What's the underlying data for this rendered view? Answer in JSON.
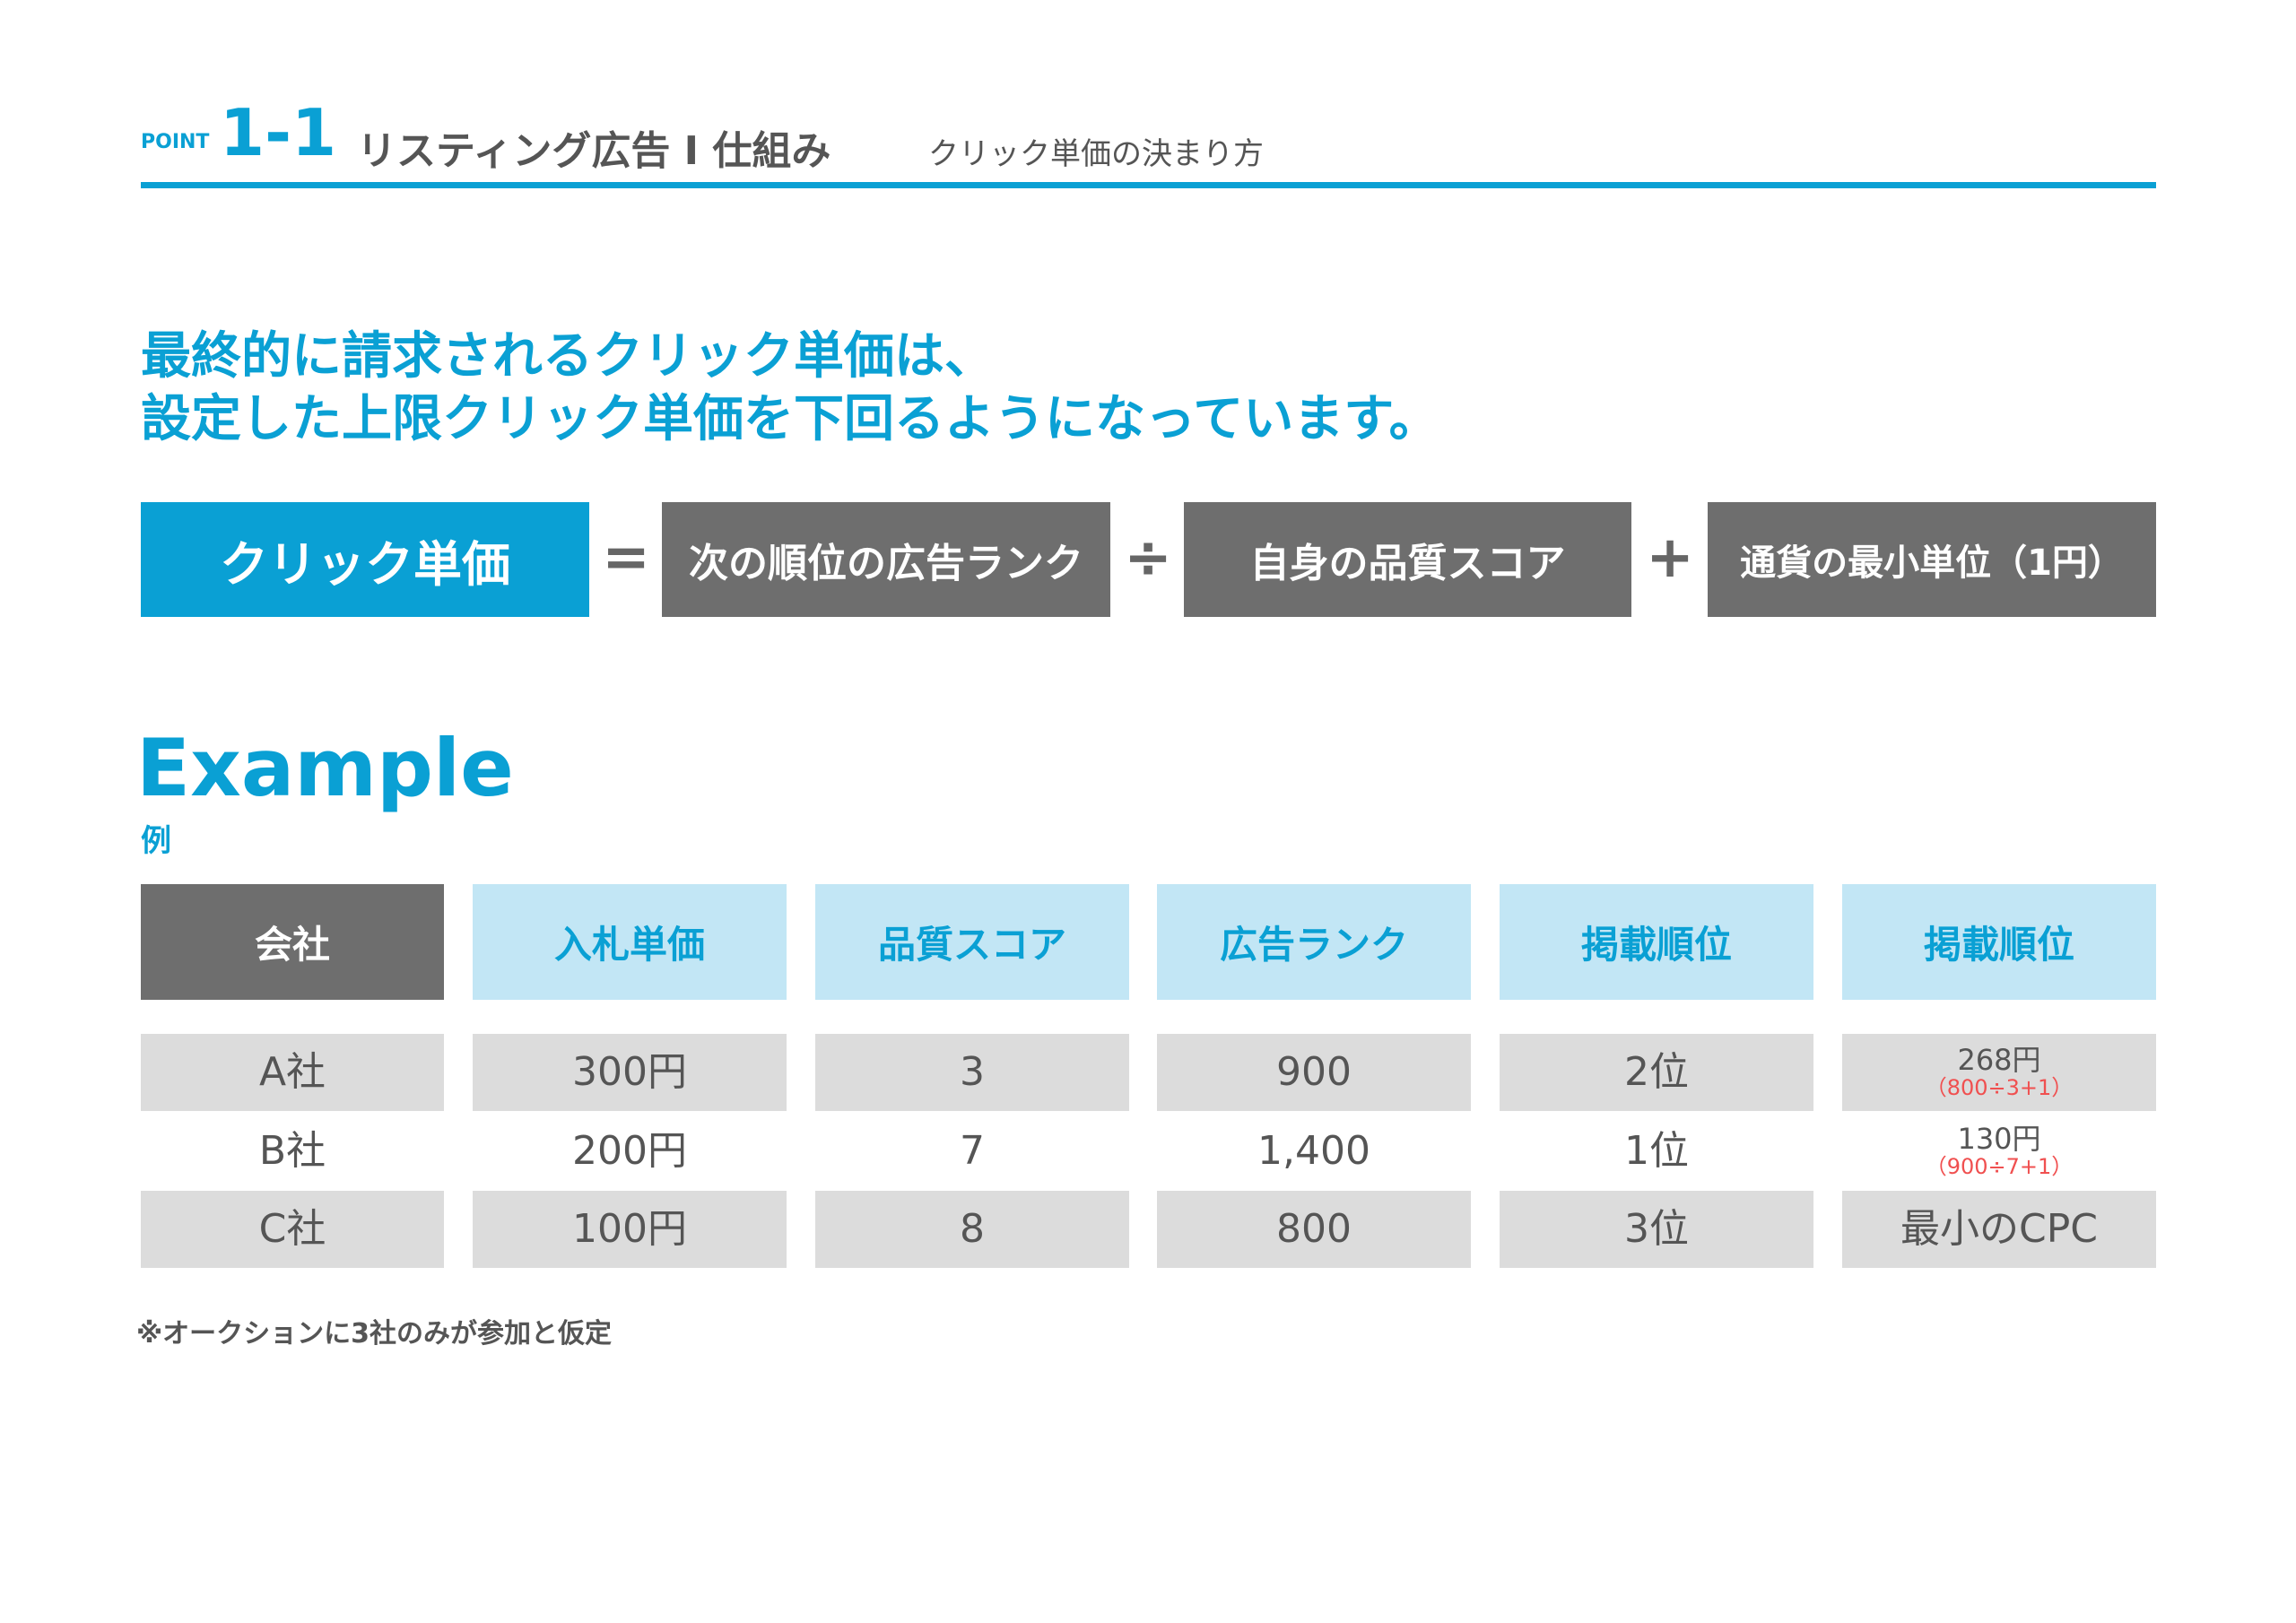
{
  "header": {
    "point": "POINT",
    "number": "1-1",
    "title": "リスティング広告 I 仕組み",
    "subtitle": "クリック単価の決まり方"
  },
  "headline": {
    "line1": "最終的に請求されるクリック単価は、",
    "line2": "設定した上限クリック単価を下回るようになっています。"
  },
  "formula": {
    "result": "クリック単価",
    "op1": "=",
    "term1": "次の順位の広告ランク",
    "op2": "÷",
    "term2": "自身の品質スコア",
    "op3": "+",
    "term3": "通貨の最小単位（1円）"
  },
  "example": {
    "title": "Example",
    "subtitle": "例"
  },
  "table": {
    "headers": [
      "会社",
      "入札単価",
      "品質スコア",
      "広告ランク",
      "掲載順位",
      "掲載順位"
    ],
    "rows": [
      {
        "company": "A社",
        "bid": "300円",
        "quality": "3",
        "rank": "900",
        "position": "2位",
        "cpc": "268円",
        "cpc_note": "（800÷3+1）"
      },
      {
        "company": "B社",
        "bid": "200円",
        "quality": "7",
        "rank": "1,400",
        "position": "1位",
        "cpc": "130円",
        "cpc_note": "（900÷7+1）"
      },
      {
        "company": "C社",
        "bid": "100円",
        "quality": "8",
        "rank": "800",
        "position": "3位",
        "cpc": "最小のCPC",
        "cpc_note": ""
      }
    ]
  },
  "footnote": "※オークションに3社のみが参加と仮定",
  "colors": {
    "accent": "#0aa0d4",
    "dark_box": "#6e6e6e",
    "light_header": "#c2e6f5",
    "row_gray": "#dcdcdc",
    "note_red": "#f05050"
  }
}
